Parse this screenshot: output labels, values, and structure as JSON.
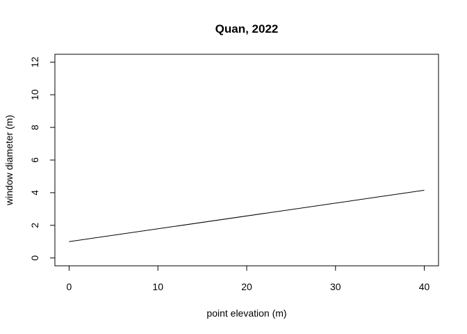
{
  "chart_data": {
    "type": "line",
    "title": "Quan, 2022",
    "xlabel": "point elevation (m)",
    "ylabel": "window diameter (m)",
    "xlim": [
      -1.6,
      41.6
    ],
    "ylim": [
      -0.48,
      12.48
    ],
    "xticks": [
      0,
      10,
      20,
      30,
      40
    ],
    "yticks": [
      0,
      2,
      4,
      6,
      8,
      10,
      12
    ],
    "grid": false,
    "series": [
      {
        "x": [
          0,
          40
        ],
        "values": [
          1.0,
          4.15
        ],
        "color": "#000000"
      }
    ]
  }
}
